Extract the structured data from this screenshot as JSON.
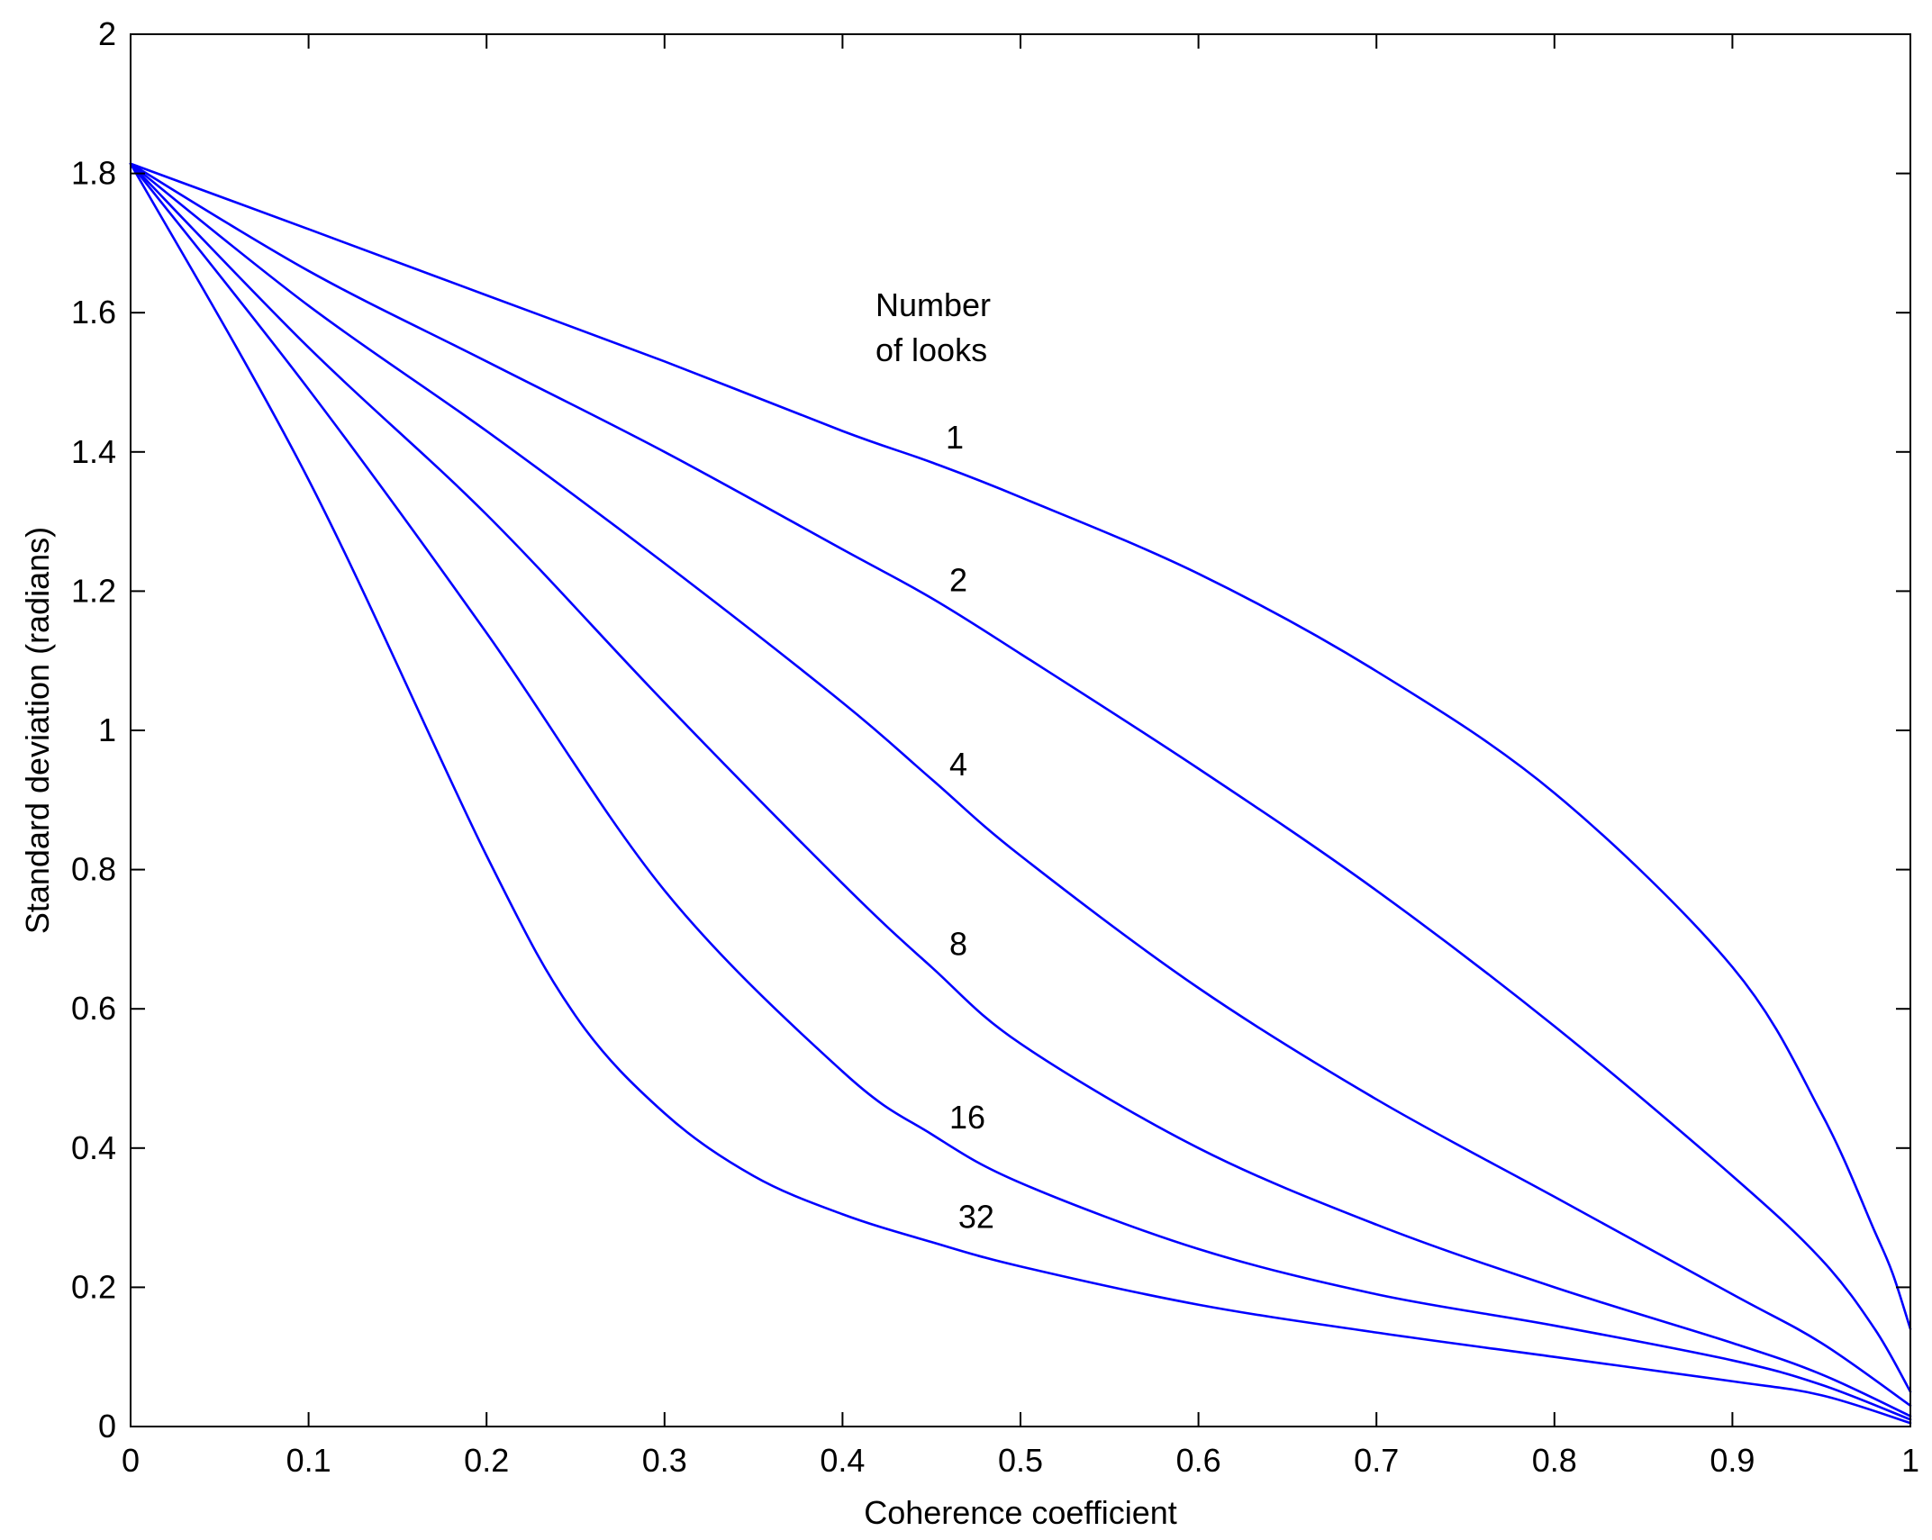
{
  "chart_data": {
    "type": "line",
    "title": "",
    "xlabel": "Coherence coefficient",
    "ylabel": "Standard deviation (radians)",
    "xlim": [
      0,
      1
    ],
    "ylim": [
      0,
      2
    ],
    "xticks": [
      "0",
      "0.1",
      "0.2",
      "0.3",
      "0.4",
      "0.5",
      "0.6",
      "0.7",
      "0.8",
      "0.9",
      "1"
    ],
    "yticks": [
      "0",
      "0.2",
      "0.4",
      "0.6",
      "0.8",
      "1",
      "1.2",
      "1.4",
      "1.6",
      "1.8",
      "2"
    ],
    "grid": false,
    "line_color": "#0000ff",
    "annotations": {
      "legend_title_line1": "Number",
      "legend_title_line2": "of looks"
    },
    "series": [
      {
        "name": "1",
        "x": [
          0,
          0.1,
          0.2,
          0.3,
          0.4,
          0.45,
          0.5,
          0.6,
          0.7,
          0.8,
          0.9,
          0.95,
          0.98,
          0.99,
          1.0
        ],
        "y": [
          1.814,
          1.72,
          1.625,
          1.53,
          1.43,
          1.385,
          1.335,
          1.225,
          1.085,
          0.91,
          0.66,
          0.45,
          0.28,
          0.22,
          0.14
        ]
      },
      {
        "name": "2",
        "x": [
          0,
          0.1,
          0.2,
          0.3,
          0.4,
          0.45,
          0.5,
          0.6,
          0.7,
          0.8,
          0.9,
          0.95,
          0.98,
          1.0
        ],
        "y": [
          1.814,
          1.66,
          1.53,
          1.4,
          1.26,
          1.19,
          1.11,
          0.945,
          0.77,
          0.575,
          0.36,
          0.24,
          0.14,
          0.05
        ]
      },
      {
        "name": "4",
        "x": [
          0,
          0.1,
          0.2,
          0.3,
          0.4,
          0.45,
          0.5,
          0.6,
          0.7,
          0.8,
          0.9,
          0.95,
          1.0
        ],
        "y": [
          1.814,
          1.61,
          1.43,
          1.24,
          1.04,
          0.93,
          0.82,
          0.63,
          0.47,
          0.33,
          0.19,
          0.12,
          0.03
        ]
      },
      {
        "name": "8",
        "x": [
          0,
          0.1,
          0.2,
          0.3,
          0.4,
          0.45,
          0.5,
          0.6,
          0.7,
          0.8,
          0.9,
          0.95,
          1.0
        ],
        "y": [
          1.814,
          1.55,
          1.31,
          1.04,
          0.78,
          0.66,
          0.55,
          0.4,
          0.29,
          0.2,
          0.12,
          0.075,
          0.015
        ]
      },
      {
        "name": "16",
        "x": [
          0,
          0.1,
          0.2,
          0.3,
          0.4,
          0.45,
          0.5,
          0.6,
          0.7,
          0.8,
          0.9,
          0.95,
          1.0
        ],
        "y": [
          1.814,
          1.49,
          1.14,
          0.77,
          0.51,
          0.42,
          0.35,
          0.255,
          0.19,
          0.145,
          0.095,
          0.06,
          0.01
        ]
      },
      {
        "name": "32",
        "x": [
          0,
          0.1,
          0.2,
          0.25,
          0.3,
          0.35,
          0.4,
          0.45,
          0.5,
          0.6,
          0.7,
          0.8,
          0.9,
          0.95,
          1.0
        ],
        "y": [
          1.814,
          1.36,
          0.82,
          0.59,
          0.45,
          0.36,
          0.305,
          0.265,
          0.23,
          0.175,
          0.135,
          0.1,
          0.065,
          0.045,
          0.005
        ]
      }
    ],
    "series_labels": [
      {
        "text": "1",
        "x": 0.458,
        "y": 1.405
      },
      {
        "text": "2",
        "x": 0.46,
        "y": 1.2
      },
      {
        "text": "4",
        "x": 0.46,
        "y": 0.935
      },
      {
        "text": "8",
        "x": 0.46,
        "y": 0.677
      },
      {
        "text": "16",
        "x": 0.46,
        "y": 0.428
      },
      {
        "text": "32",
        "x": 0.465,
        "y": 0.285
      }
    ]
  }
}
